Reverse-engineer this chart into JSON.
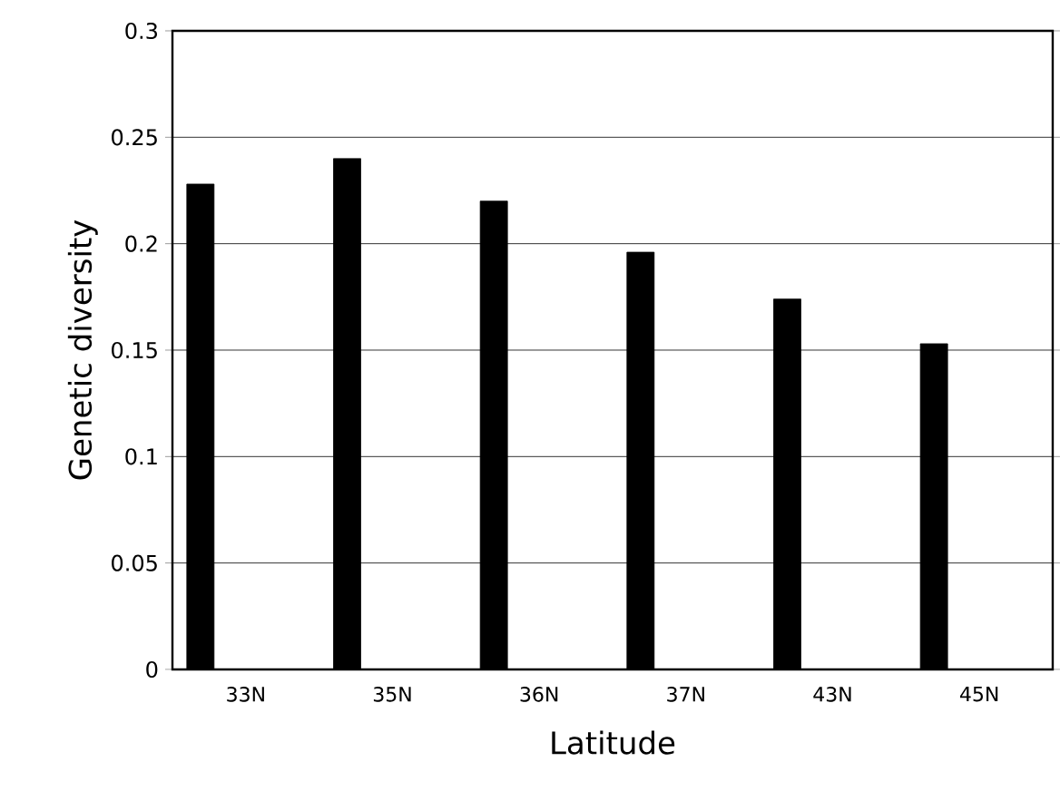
{
  "chart_data": {
    "type": "bar",
    "xlabel": "Latitude",
    "ylabel": "Genetic diversity",
    "categories": [
      "33N",
      "35N",
      "36N",
      "37N",
      "43N",
      "45N"
    ],
    "values": [
      0.228,
      0.24,
      0.22,
      0.196,
      0.174,
      0.153
    ],
    "color": "#000000",
    "ylim": [
      0,
      0.3
    ],
    "yticks": [
      0,
      0.05,
      0.1,
      0.15,
      0.2,
      0.25,
      0.3
    ],
    "grid": "y"
  }
}
